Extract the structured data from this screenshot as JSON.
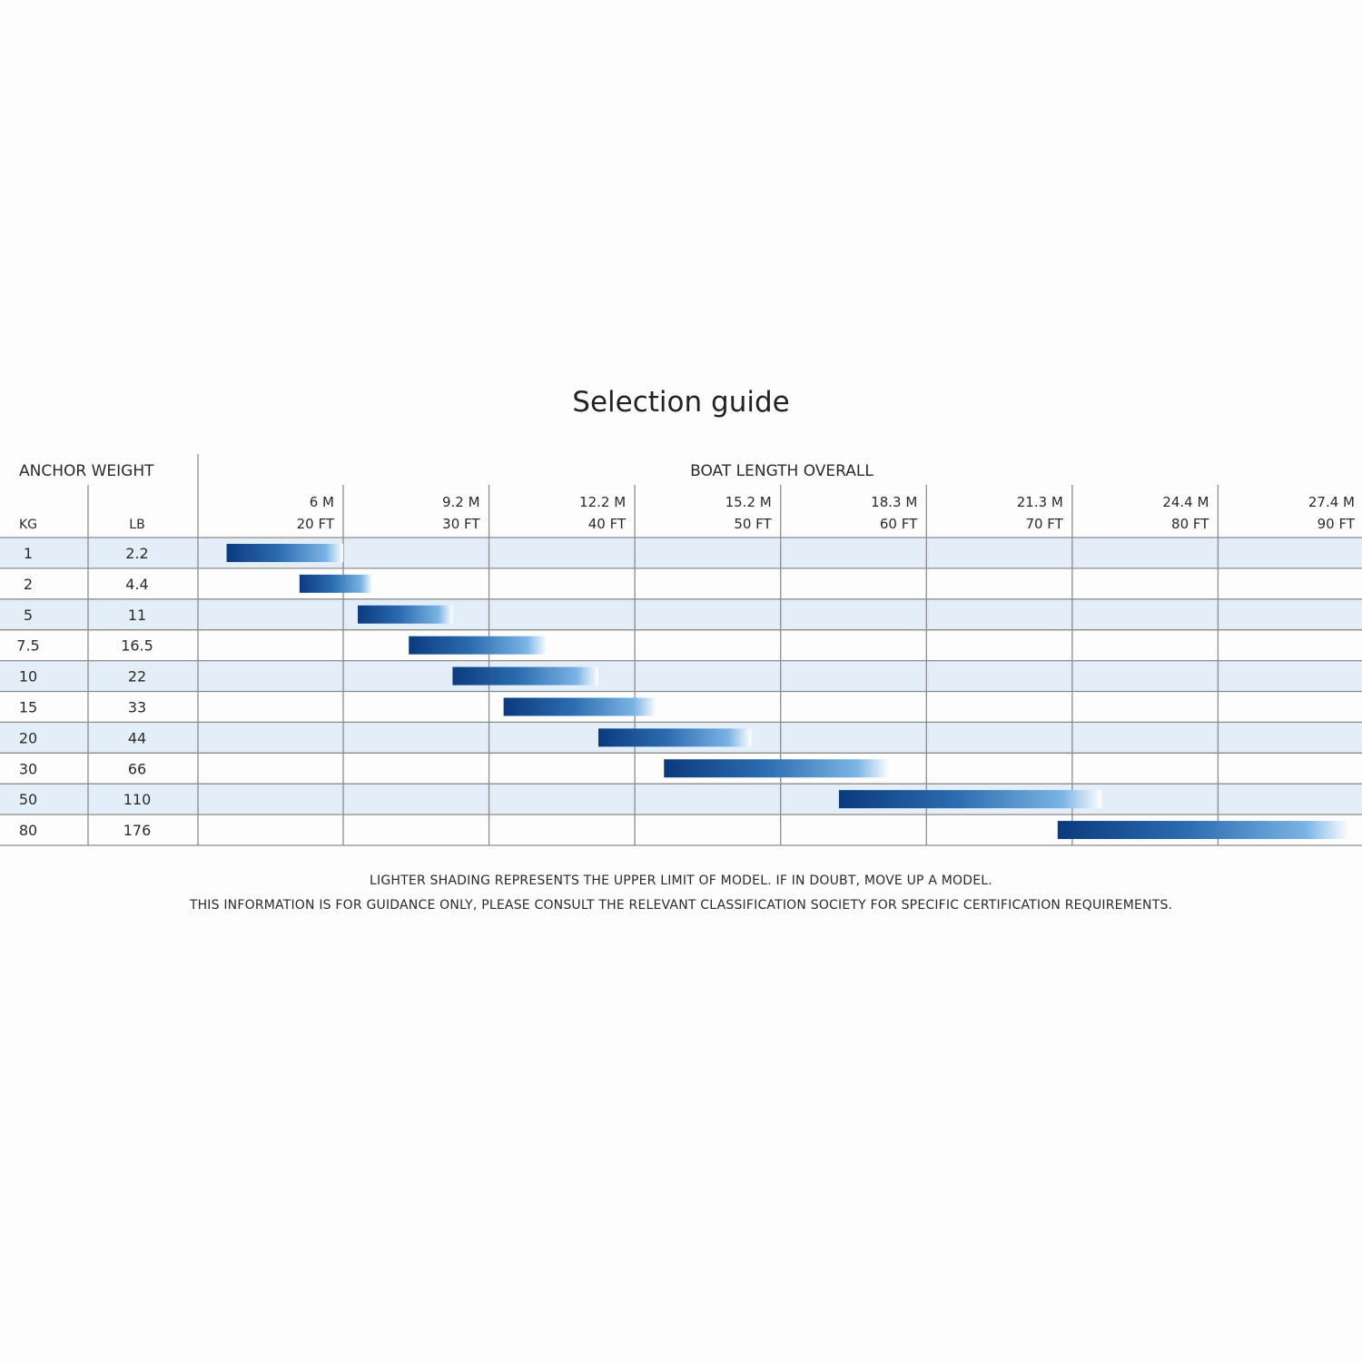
{
  "title": "Selection guide",
  "header": {
    "anchor_weight": "ANCHOR WEIGHT",
    "boat_length": "BOAT LENGTH OVERALL",
    "kg": "KG",
    "lb": "LB"
  },
  "notes": {
    "line1": "LIGHTER SHADING REPRESENTS THE UPPER LIMIT OF MODEL. IF IN DOUBT, MOVE UP A MODEL.",
    "line2": "THIS INFORMATION IS FOR GUIDANCE ONLY, PLEASE CONSULT THE RELEVANT CLASSIFICATION SOCIETY FOR SPECIFIC CERTIFICATION REQUIREMENTS."
  },
  "colors": {
    "bar_dark": "#0b3a7e",
    "bar_mid": "#6aa6dc",
    "bar_light": "#ffffff",
    "row_shade": "#e3eef9",
    "grid": "#8c8c8c"
  },
  "chart_data": {
    "type": "bar",
    "orientation": "horizontal",
    "x_unit": "FT",
    "x_ticks": [
      {
        "m": "6",
        "ft": "20",
        "value": 20
      },
      {
        "m": "9.2",
        "ft": "30",
        "value": 30
      },
      {
        "m": "12.2",
        "ft": "40",
        "value": 40
      },
      {
        "m": "15.2",
        "ft": "50",
        "value": 50
      },
      {
        "m": "18.3",
        "ft": "60",
        "value": 60
      },
      {
        "m": "21.3",
        "ft": "70",
        "value": 70
      },
      {
        "m": "24.4",
        "ft": "80",
        "value": 80
      },
      {
        "m": "27.4",
        "ft": "90",
        "value": 90
      }
    ],
    "xlim": [
      10,
      90
    ],
    "rows": [
      {
        "kg": "1",
        "lb": "2.2",
        "start": 12,
        "end": 20
      },
      {
        "kg": "2",
        "lb": "4.4",
        "start": 17,
        "end": 22
      },
      {
        "kg": "5",
        "lb": "11",
        "start": 21,
        "end": 27.5
      },
      {
        "kg": "7.5",
        "lb": "16.5",
        "start": 24.5,
        "end": 34
      },
      {
        "kg": "10",
        "lb": "22",
        "start": 27.5,
        "end": 37.5
      },
      {
        "kg": "15",
        "lb": "33",
        "start": 31,
        "end": 41.5
      },
      {
        "kg": "20",
        "lb": "44",
        "start": 37.5,
        "end": 48
      },
      {
        "kg": "30",
        "lb": "66",
        "start": 42,
        "end": 57.5
      },
      {
        "kg": "50",
        "lb": "110",
        "start": 54,
        "end": 72
      },
      {
        "kg": "80",
        "lb": "176",
        "start": 69,
        "end": 89
      }
    ]
  }
}
